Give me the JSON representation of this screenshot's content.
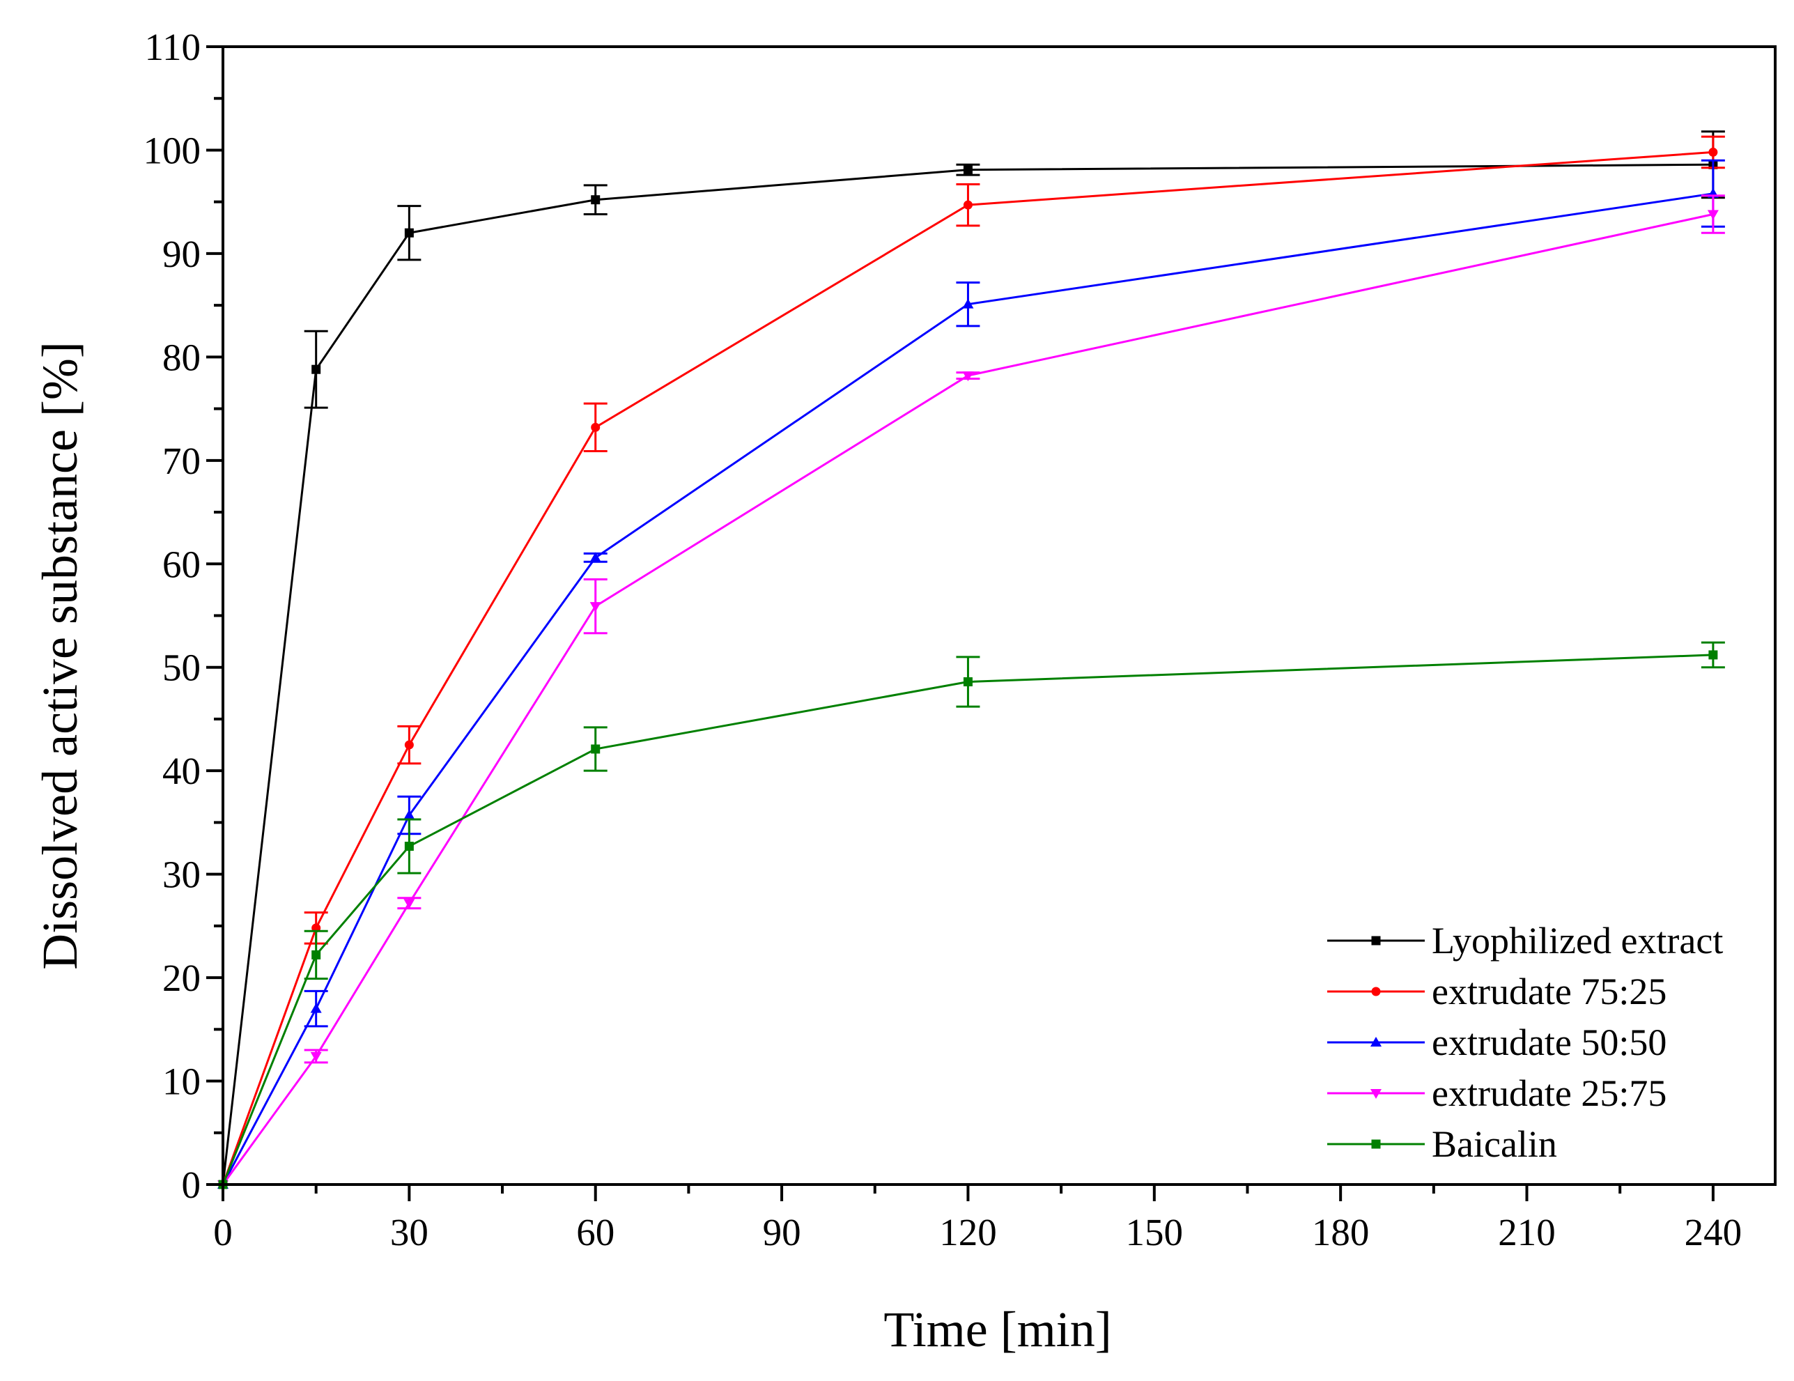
{
  "chart_data": {
    "type": "line",
    "title": "",
    "xlabel": "Time [min]",
    "ylabel": "Dissolved active substance [%]",
    "xlim": [
      0,
      250
    ],
    "ylim": [
      0,
      110
    ],
    "xticks": [
      0,
      30,
      60,
      90,
      120,
      150,
      180,
      210,
      240
    ],
    "yticks": [
      0,
      10,
      20,
      30,
      40,
      50,
      60,
      70,
      80,
      90,
      100,
      110
    ],
    "xtick_labels": [
      "0",
      "30",
      "60",
      "90",
      "120",
      "150",
      "180",
      "210",
      "240"
    ],
    "ytick_labels": [
      "0",
      "10",
      "20",
      "30",
      "40",
      "50",
      "60",
      "70",
      "80",
      "90",
      "100",
      "110"
    ],
    "grid": false,
    "legend_position": "bottom-right",
    "x": [
      0,
      15,
      30,
      60,
      120,
      240
    ],
    "series": [
      {
        "name": "Lyophilized extract",
        "color": "#000000",
        "marker": "square",
        "values": [
          0,
          78.8,
          92.0,
          95.2,
          98.1,
          98.6
        ],
        "errors": [
          0,
          3.7,
          2.6,
          1.4,
          0.5,
          3.2
        ]
      },
      {
        "name": "extrudate 75:25",
        "color": "#ff0000",
        "marker": "circle",
        "values": [
          0,
          24.8,
          42.5,
          73.2,
          94.7,
          99.8
        ],
        "errors": [
          0,
          1.5,
          1.8,
          2.3,
          2.0,
          1.5
        ]
      },
      {
        "name": "extrudate 50:50",
        "color": "#0000ff",
        "marker": "triangle-up",
        "values": [
          0,
          17.0,
          35.7,
          60.6,
          85.1,
          95.8
        ],
        "errors": [
          0,
          1.7,
          1.8,
          0.4,
          2.1,
          3.2
        ]
      },
      {
        "name": "extrudate 25:75",
        "color": "#ff00ff",
        "marker": "triangle-down",
        "values": [
          0,
          12.4,
          27.2,
          55.9,
          78.2,
          93.8
        ],
        "errors": [
          0,
          0.6,
          0.5,
          2.6,
          0.3,
          1.8
        ]
      },
      {
        "name": "Baicalin",
        "color": "#008000",
        "marker": "square",
        "values": [
          0,
          22.2,
          32.7,
          42.1,
          48.6,
          51.2
        ],
        "errors": [
          0,
          2.3,
          2.6,
          2.1,
          2.4,
          1.2
        ]
      }
    ]
  }
}
